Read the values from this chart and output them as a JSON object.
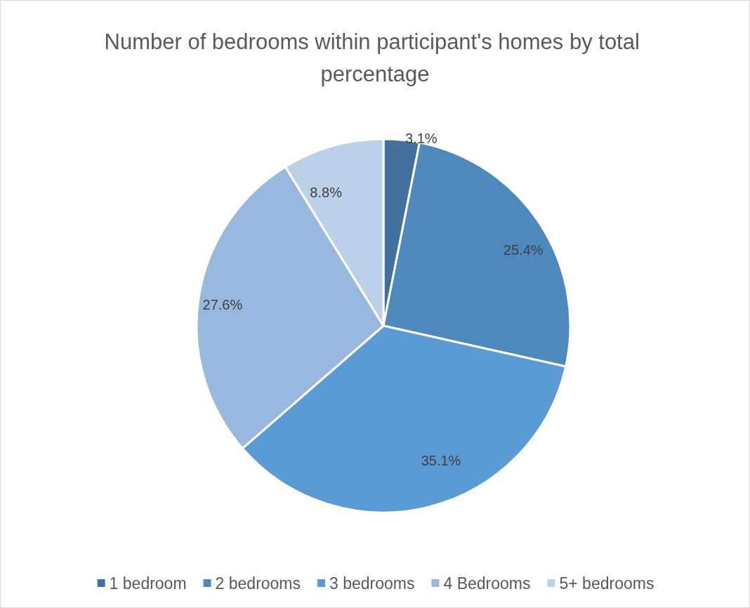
{
  "chart_data": {
    "type": "pie",
    "title": "Number of bedrooms within participant's homes by total percentage",
    "categories": [
      "1 bedroom",
      "2 bedrooms",
      "3 bedrooms",
      "4 Bedrooms",
      "5+ bedrooms"
    ],
    "values": [
      3.1,
      25.4,
      35.1,
      27.6,
      8.8
    ],
    "value_labels": [
      "3.1%",
      "25.4%",
      "35.1%",
      "27.6%",
      "8.8%"
    ],
    "colors": [
      "#41719c",
      "#4e89be",
      "#5b9bd5",
      "#98b8df",
      "#bdd0e9"
    ],
    "legend": "bottom"
  }
}
